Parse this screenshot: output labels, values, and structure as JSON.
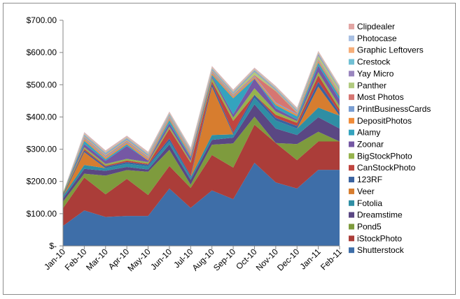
{
  "chart_data": {
    "type": "area",
    "stacked": true,
    "title": "",
    "xlabel": "",
    "ylabel": "",
    "categories": [
      "Jan-10",
      "Feb-10",
      "Mar-10",
      "Apr-10",
      "May-10",
      "Jun-10",
      "Jul-10",
      "Aug-10",
      "Sep-10",
      "Oct-10",
      "Nov-10",
      "Dec-10",
      "Jan-11",
      "Feb-11"
    ],
    "ylim": [
      0,
      700
    ],
    "y_ticks": [
      0,
      100,
      200,
      300,
      400,
      500,
      600,
      700
    ],
    "y_tick_labels": [
      "$-",
      "$100.00",
      "$200.00",
      "$300.00",
      "$400.00",
      "$500.00",
      "$600.00",
      "$700.00"
    ],
    "grid": false,
    "legend_position": "right",
    "series": [
      {
        "name": "Shutterstock",
        "color": "#3e6ea8",
        "values": [
          62,
          110,
          90,
          93,
          93,
          178,
          118,
          172,
          145,
          258,
          197,
          178,
          236,
          236
        ]
      },
      {
        "name": "iStockPhoto",
        "color": "#ab3d39",
        "values": [
          55,
          102,
          70,
          115,
          65,
          70,
          62,
          110,
          98,
          118,
          122,
          88,
          88,
          88
        ]
      },
      {
        "name": "Pond5",
        "color": "#7e9b3d",
        "values": [
          20,
          12,
          58,
          27,
          72,
          50,
          10,
          32,
          75,
          25,
          0,
          50,
          30,
          0
        ]
      },
      {
        "name": "Dreamstime",
        "color": "#5a4783",
        "values": [
          10,
          15,
          15,
          10,
          7,
          17,
          15,
          15,
          18,
          38,
          45,
          28,
          45,
          40
        ]
      },
      {
        "name": "Fotolia",
        "color": "#2f8ea4",
        "values": [
          8,
          12,
          8,
          10,
          10,
          10,
          8,
          15,
          10,
          20,
          25,
          20,
          30,
          40
        ]
      },
      {
        "name": "Veer",
        "color": "#d77d2f",
        "values": [
          0,
          40,
          0,
          0,
          0,
          0,
          0,
          150,
          0,
          0,
          0,
          0,
          65,
          0
        ]
      },
      {
        "name": "123RF",
        "color": "#3a63a0",
        "values": [
          5,
          5,
          5,
          5,
          5,
          8,
          5,
          10,
          5,
          10,
          8,
          8,
          15,
          10
        ]
      },
      {
        "name": "CanStockPhoto",
        "color": "#c0453f",
        "values": [
          0,
          5,
          3,
          5,
          3,
          30,
          40,
          7,
          37,
          0,
          10,
          10,
          20,
          10
        ]
      },
      {
        "name": "BigStockPhoto",
        "color": "#96b34d",
        "values": [
          5,
          5,
          5,
          5,
          5,
          7,
          5,
          10,
          10,
          20,
          10,
          5,
          10,
          10
        ]
      },
      {
        "name": "Zoonar",
        "color": "#7558a4",
        "values": [
          0,
          10,
          10,
          40,
          5,
          10,
          10,
          5,
          10,
          30,
          10,
          5,
          20,
          20
        ]
      },
      {
        "name": "Alamy",
        "color": "#34a3be",
        "values": [
          0,
          10,
          5,
          5,
          0,
          10,
          5,
          5,
          50,
          0,
          10,
          10,
          10,
          10
        ]
      },
      {
        "name": "DepositPhotos",
        "color": "#f08c3a",
        "values": [
          0,
          5,
          5,
          5,
          5,
          5,
          5,
          5,
          5,
          5,
          5,
          5,
          5,
          5
        ]
      },
      {
        "name": "PrintBusinessCards",
        "color": "#7a9ed2",
        "values": [
          0,
          3,
          3,
          3,
          3,
          3,
          3,
          3,
          3,
          3,
          3,
          3,
          3,
          3
        ]
      },
      {
        "name": "Most Photos",
        "color": "#d67672",
        "values": [
          0,
          3,
          3,
          3,
          3,
          3,
          3,
          3,
          3,
          3,
          35,
          3,
          3,
          3
        ]
      },
      {
        "name": "Panther",
        "color": "#b1ca7f",
        "values": [
          0,
          3,
          3,
          3,
          3,
          3,
          3,
          3,
          3,
          10,
          3,
          3,
          10,
          10
        ]
      },
      {
        "name": "Yay Micro",
        "color": "#9a86bf",
        "values": [
          0,
          3,
          3,
          3,
          3,
          3,
          3,
          3,
          3,
          3,
          3,
          3,
          5,
          3
        ]
      },
      {
        "name": "Crestock",
        "color": "#71c0d4",
        "values": [
          0,
          3,
          3,
          3,
          3,
          3,
          3,
          3,
          3,
          3,
          3,
          3,
          3,
          3
        ]
      },
      {
        "name": "Graphic Leftovers",
        "color": "#f6ae79",
        "values": [
          0,
          3,
          3,
          3,
          3,
          3,
          3,
          3,
          3,
          3,
          3,
          3,
          3,
          3
        ]
      },
      {
        "name": "Photocase",
        "color": "#a8bfe2",
        "values": [
          0,
          2,
          2,
          2,
          2,
          2,
          2,
          2,
          2,
          2,
          2,
          2,
          2,
          2
        ]
      },
      {
        "name": "Clipdealer",
        "color": "#e2a6a4",
        "values": [
          0,
          2,
          2,
          2,
          2,
          2,
          2,
          2,
          2,
          2,
          2,
          2,
          2,
          2
        ]
      }
    ],
    "legend_order": [
      "Clipdealer",
      "Photocase",
      "Graphic Leftovers",
      "Crestock",
      "Yay Micro",
      "Panther",
      "Most Photos",
      "PrintBusinessCards",
      "DepositPhotos",
      "Alamy",
      "Zoonar",
      "BigStockPhoto",
      "CanStockPhoto",
      "123RF",
      "Veer",
      "Fotolia",
      "Dreamstime",
      "Pond5",
      "iStockPhoto",
      "Shutterstock"
    ]
  }
}
